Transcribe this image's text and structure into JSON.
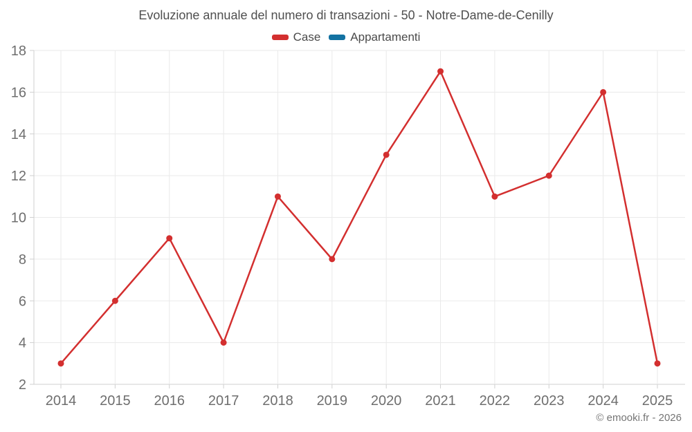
{
  "title": "Evoluzione annuale del numero di transazioni - 50 - Notre-Dame-de-Cenilly",
  "legend": [
    {
      "label": "Case",
      "color": "#d32f2f"
    },
    {
      "label": "Appartamenti",
      "color": "#1372a2"
    }
  ],
  "footer": "© emooki.fr - 2026",
  "colors": {
    "case_red": "#d32f2f",
    "appartamenti_blue": "#1372a2",
    "gridline": "#eaeaea",
    "axis_line": "#cfcfcf",
    "tick_label": "#6e6e6e",
    "title_text": "#4f4f4f",
    "footer_text": "#757575"
  },
  "chart_data": {
    "type": "line",
    "title": "Evoluzione annuale del numero di transazioni - 50 - Notre-Dame-de-Cenilly",
    "x": [
      "2014",
      "2015",
      "2016",
      "2017",
      "2018",
      "2019",
      "2020",
      "2021",
      "2022",
      "2023",
      "2024",
      "2025"
    ],
    "series": [
      {
        "name": "Case",
        "color": "#d32f2f",
        "values": [
          3,
          6,
          9,
          4,
          11,
          8,
          13,
          17,
          11,
          12,
          16,
          3
        ]
      },
      {
        "name": "Appartamenti",
        "color": "#1372a2",
        "values": []
      }
    ],
    "xlabel": "",
    "ylabel": "",
    "ylim": [
      2,
      18
    ],
    "yticks": [
      2,
      4,
      6,
      8,
      10,
      12,
      14,
      16,
      18
    ],
    "grid": true,
    "legend_position": "top",
    "marker": "circle",
    "annotation": "© emooki.fr - 2026"
  }
}
